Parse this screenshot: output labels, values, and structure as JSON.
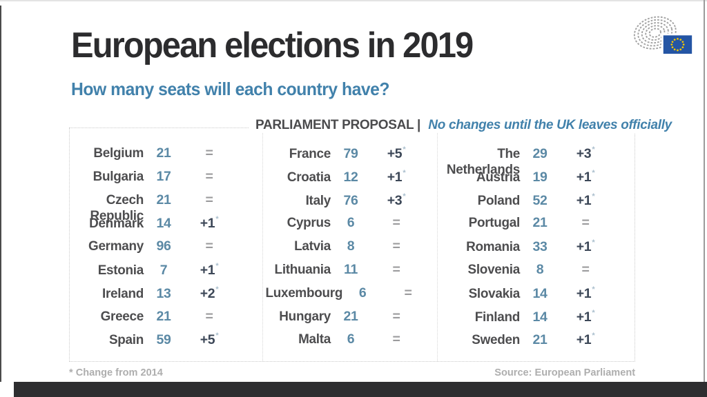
{
  "chart_data": {
    "type": "table",
    "title": "European elections in 2019",
    "subtitle": "How many seats will each country have?",
    "header": {
      "label": "PARLIAMENT PROPOSAL |",
      "note": "No changes until the UK leaves officially"
    },
    "columns": [
      {
        "rows": [
          {
            "country": "Belgium",
            "seats": 21,
            "change": "=",
            "asterisk": false
          },
          {
            "country": "Bulgaria",
            "seats": 17,
            "change": "=",
            "asterisk": false
          },
          {
            "country": "Czech Republic",
            "seats": 21,
            "change": "=",
            "asterisk": false
          },
          {
            "country": "Denmark",
            "seats": 14,
            "change": "+1",
            "asterisk": true
          },
          {
            "country": "Germany",
            "seats": 96,
            "change": "=",
            "asterisk": false
          },
          {
            "country": "Estonia",
            "seats": 7,
            "change": "+1",
            "asterisk": true
          },
          {
            "country": "Ireland",
            "seats": 13,
            "change": "+2",
            "asterisk": true
          },
          {
            "country": "Greece",
            "seats": 21,
            "change": "=",
            "asterisk": false
          },
          {
            "country": "Spain",
            "seats": 59,
            "change": "+5",
            "asterisk": true
          }
        ]
      },
      {
        "rows": [
          {
            "country": "France",
            "seats": 79,
            "change": "+5",
            "asterisk": true
          },
          {
            "country": "Croatia",
            "seats": 12,
            "change": "+1",
            "asterisk": true
          },
          {
            "country": "Italy",
            "seats": 76,
            "change": "+3",
            "asterisk": true
          },
          {
            "country": "Cyprus",
            "seats": 6,
            "change": "=",
            "asterisk": false
          },
          {
            "country": "Latvia",
            "seats": 8,
            "change": "=",
            "asterisk": false
          },
          {
            "country": "Lithuania",
            "seats": 11,
            "change": "=",
            "asterisk": false
          },
          {
            "country": "Luxembourg",
            "seats": 6,
            "change": "=",
            "asterisk": false
          },
          {
            "country": "Hungary",
            "seats": 21,
            "change": "=",
            "asterisk": false
          },
          {
            "country": "Malta",
            "seats": 6,
            "change": "=",
            "asterisk": false
          }
        ]
      },
      {
        "rows": [
          {
            "country": "The Netherlands",
            "seats": 29,
            "change": "+3",
            "asterisk": true
          },
          {
            "country": "Austria",
            "seats": 19,
            "change": "+1",
            "asterisk": true
          },
          {
            "country": "Poland",
            "seats": 52,
            "change": "+1",
            "asterisk": true
          },
          {
            "country": "Portugal",
            "seats": 21,
            "change": "=",
            "asterisk": false
          },
          {
            "country": "Romania",
            "seats": 33,
            "change": "+1",
            "asterisk": true
          },
          {
            "country": "Slovenia",
            "seats": 8,
            "change": "=",
            "asterisk": false
          },
          {
            "country": "Slovakia",
            "seats": 14,
            "change": "+1",
            "asterisk": true
          },
          {
            "country": "Finland",
            "seats": 14,
            "change": "+1",
            "asterisk": true
          },
          {
            "country": "Sweden",
            "seats": 21,
            "change": "+1",
            "asterisk": true
          }
        ]
      }
    ],
    "footnote": "* Change from 2014",
    "source": "Source: European Parliament",
    "colors": {
      "title": "#2c2c2e",
      "accent_blue": "#4181ab",
      "seats_blue": "#5b89a5",
      "change_dark": "#3c4757",
      "equal_gray": "#9b9b9d",
      "footer_gray": "#aeaeae",
      "flag_blue": "#2455a4",
      "star_yellow": "#f2c500"
    },
    "logo": "european-parliament-hemicycle-logo"
  }
}
